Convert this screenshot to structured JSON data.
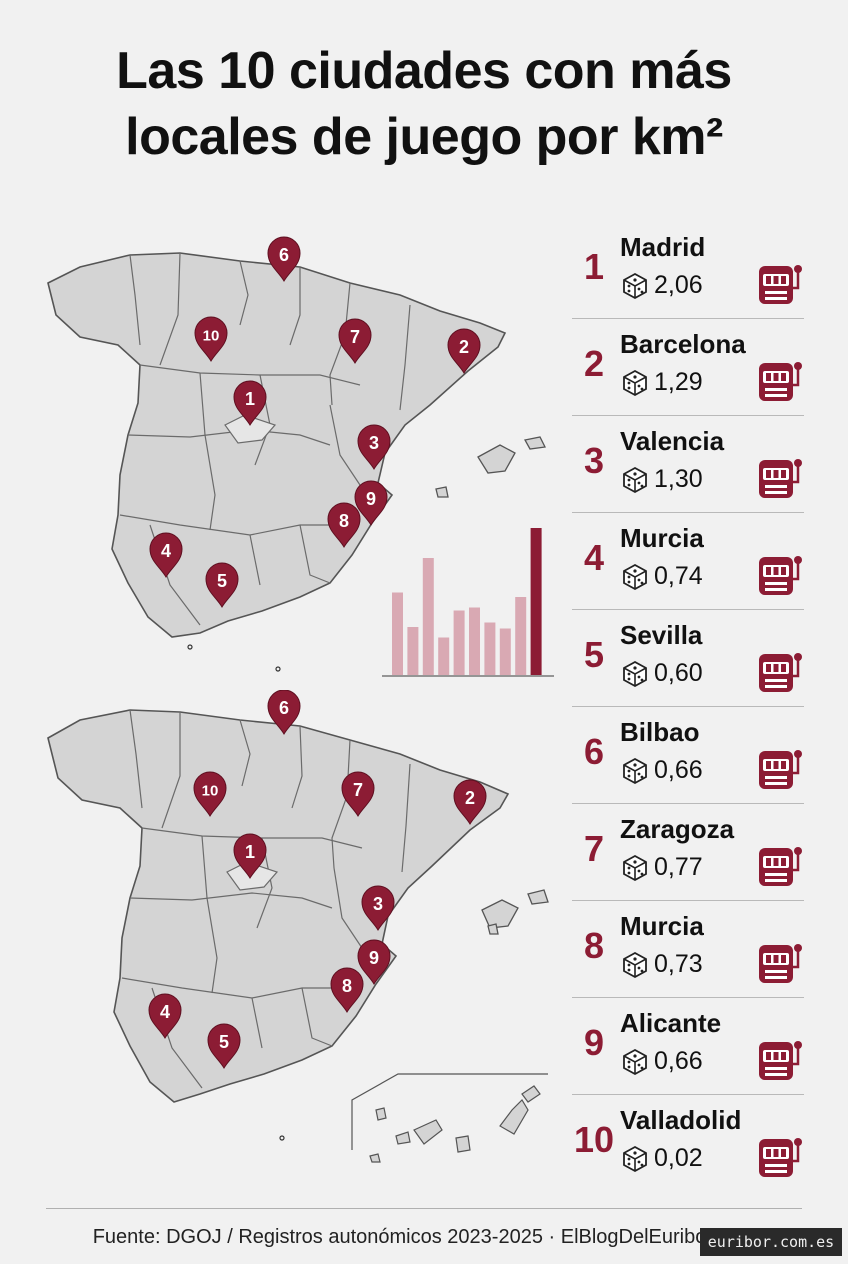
{
  "title": {
    "line1": "Las 10 ciudades con más",
    "line2": "locales de juego por km²"
  },
  "colors": {
    "accent": "#8c1c34",
    "bar_light": "#d9a9b3",
    "map_fill": "#d4d4d4",
    "map_stroke": "#555555",
    "background": "#f1f1f1"
  },
  "icons": {
    "value": "dice-icon",
    "rank": "slot-machine-icon",
    "marker": "map-pin-icon"
  },
  "ranking": [
    {
      "rank": "1",
      "city": "Madrid",
      "value": "2,06"
    },
    {
      "rank": "2",
      "city": "Barcelona",
      "value": "1,29"
    },
    {
      "rank": "3",
      "city": "Valencia",
      "value": "1,30"
    },
    {
      "rank": "4",
      "city": "Murcia",
      "value": "0,74"
    },
    {
      "rank": "5",
      "city": "Sevilla",
      "value": "0,60"
    },
    {
      "rank": "6",
      "city": "Bilbao",
      "value": "0,66"
    },
    {
      "rank": "7",
      "city": "Zaragoza",
      "value": "0,77"
    },
    {
      "rank": "8",
      "city": "Murcia",
      "value": "0,73"
    },
    {
      "rank": "9",
      "city": "Alicante",
      "value": "0,66"
    },
    {
      "rank": "10",
      "city": "Valladolid",
      "value": "0,02"
    }
  ],
  "map_pins": [
    "1",
    "2",
    "3",
    "4",
    "5",
    "6",
    "7",
    "8",
    "9",
    "10"
  ],
  "mini_chart": {
    "type": "bar",
    "values": [
      0.55,
      0.32,
      0.78,
      0.25,
      0.43,
      0.45,
      0.35,
      0.31,
      0.52,
      0.98
    ],
    "highlight_last": true
  },
  "footer": {
    "source": "Fuente: DGOJ / Registros autonómicos 2023-2025 · ElBlogDelEuribor.com",
    "watermark": "euribor.com.es"
  }
}
